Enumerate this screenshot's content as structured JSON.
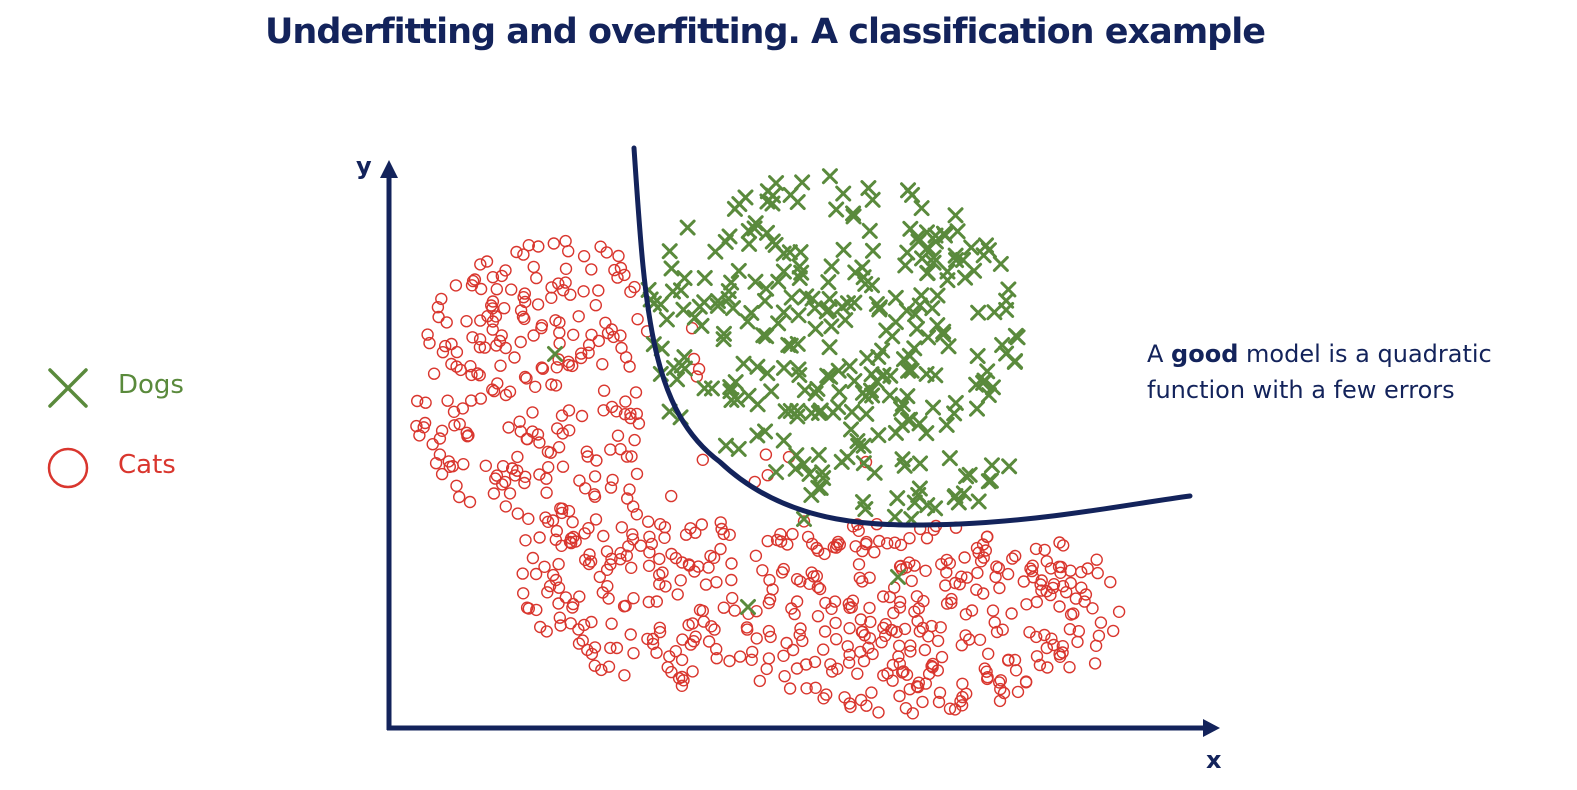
{
  "title": "Underfitting and overfitting. A classification example",
  "legend": [
    {
      "label": "Dogs",
      "marker": "x-cross-icon",
      "color": "#5a8a3c"
    },
    {
      "label": "Cats",
      "marker": "circle-icon",
      "color": "#d9362e"
    }
  ],
  "annotation": {
    "prefix": "A ",
    "bold": "good",
    "suffix_line1": " model is a quadratic",
    "line2": "function with a few errors"
  },
  "axes": {
    "x": "x",
    "y": "y"
  },
  "colors": {
    "navy": "#13235b",
    "dogs": "#5a8a3c",
    "cats": "#d9362e"
  }
}
